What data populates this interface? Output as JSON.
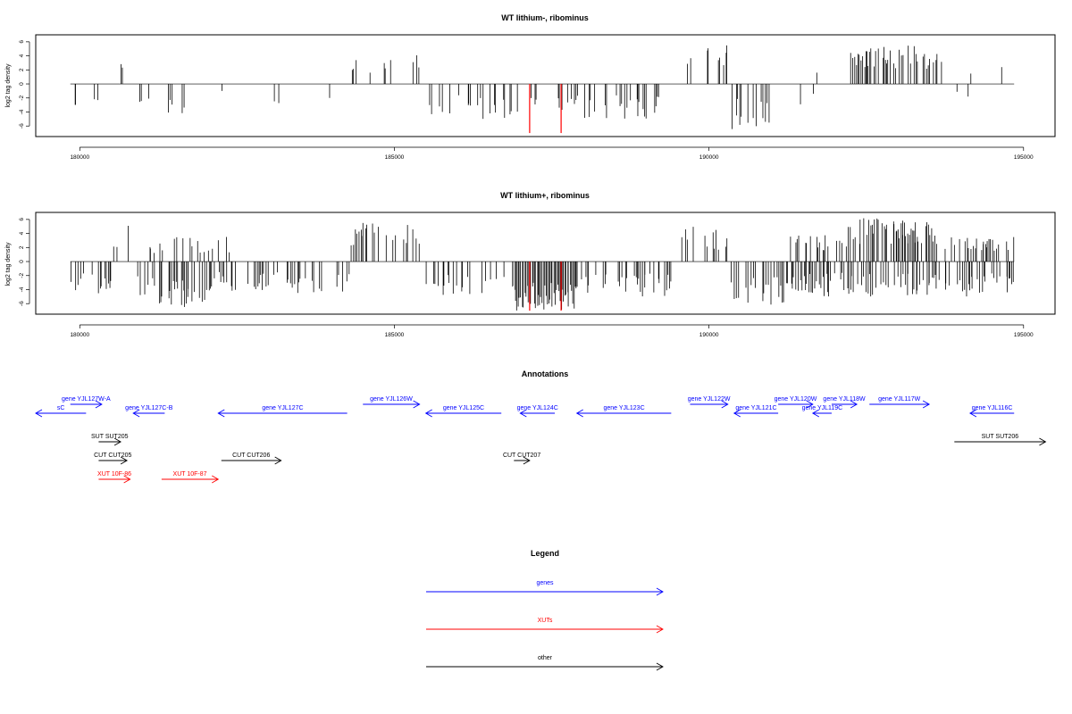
{
  "chart_data": [
    {
      "type": "bar",
      "title": "WT lithium-, ribominus",
      "ylabel": "log2 tag density",
      "xlim": [
        179300,
        195500
      ],
      "ylim": [
        -7.5,
        7
      ],
      "yticks": [
        -6,
        -4,
        -2,
        0,
        2,
        4,
        6
      ],
      "xticks": [
        "180000",
        "185000",
        "190000",
        "195000"
      ],
      "xtick_values": [
        180000,
        185000,
        190000,
        195000
      ],
      "plot_range": [
        179850,
        194850
      ],
      "seed": 11,
      "highlight_color": "#ff0000",
      "bar_color": "#000000",
      "highlights": [
        {
          "x": 187150,
          "y": -7
        },
        {
          "x": 187650,
          "y": -7
        }
      ],
      "regions": [
        {
          "from": 179850,
          "to": 180300,
          "sign": -1,
          "lo": 1.5,
          "hi": 3.5,
          "density": 0.05
        },
        {
          "from": 180600,
          "to": 180850,
          "sign": 1,
          "lo": 1.5,
          "hi": 4.8,
          "density": 0.04
        },
        {
          "from": 180850,
          "to": 181100,
          "sign": -1,
          "lo": 1,
          "hi": 3,
          "density": 0.03
        },
        {
          "from": 181300,
          "to": 181800,
          "sign": -1,
          "lo": 2,
          "hi": 5.2,
          "density": 0.09
        },
        {
          "from": 181900,
          "to": 182300,
          "sign": -1,
          "lo": 1,
          "hi": 3.5,
          "density": 0.04
        },
        {
          "from": 182500,
          "to": 183300,
          "sign": -1,
          "lo": 1,
          "hi": 3,
          "density": 0.04
        },
        {
          "from": 183700,
          "to": 184000,
          "sign": -1,
          "lo": 1,
          "hi": 2,
          "density": 0.02
        },
        {
          "from": 184300,
          "to": 185500,
          "sign": 1,
          "lo": 1.5,
          "hi": 4.2,
          "density": 0.07
        },
        {
          "from": 185500,
          "to": 186100,
          "sign": -1,
          "lo": 1.5,
          "hi": 4.5,
          "density": 0.13
        },
        {
          "from": 186100,
          "to": 186950,
          "sign": -1,
          "lo": 2,
          "hi": 5,
          "density": 0.17
        },
        {
          "from": 187000,
          "to": 187900,
          "sign": -1,
          "lo": 1.5,
          "hi": 4,
          "density": 0.12
        },
        {
          "from": 187900,
          "to": 189200,
          "sign": -1,
          "lo": 1.5,
          "hi": 5,
          "density": 0.19
        },
        {
          "from": 189500,
          "to": 190300,
          "sign": 1,
          "lo": 1.5,
          "hi": 5.5,
          "density": 0.12
        },
        {
          "from": 190300,
          "to": 191000,
          "sign": -1,
          "lo": 2,
          "hi": 6.5,
          "density": 0.17
        },
        {
          "from": 191100,
          "to": 191700,
          "sign": -1,
          "lo": 1,
          "hi": 3.5,
          "density": 0.06
        },
        {
          "from": 191700,
          "to": 192200,
          "sign": 1,
          "lo": 1.5,
          "hi": 3.5,
          "density": 0.06
        },
        {
          "from": 192200,
          "to": 193700,
          "sign": 1,
          "lo": 2,
          "hi": 5.5,
          "density": 0.25
        },
        {
          "from": 193800,
          "to": 194100,
          "sign": -1,
          "lo": 1,
          "hi": 2.5,
          "density": 0.03
        },
        {
          "from": 194100,
          "to": 194800,
          "sign": 1,
          "lo": 1,
          "hi": 3,
          "density": 0.04
        },
        {
          "from": 194100,
          "to": 194700,
          "sign": -1,
          "lo": 1,
          "hi": 3.5,
          "density": 0.03
        }
      ]
    },
    {
      "type": "bar",
      "title": "WT lithium+, ribominus",
      "ylabel": "log2 tag density",
      "xlim": [
        179300,
        195500
      ],
      "ylim": [
        -7.5,
        7
      ],
      "yticks": [
        -6,
        -4,
        -2,
        0,
        2,
        4,
        6
      ],
      "xticks": [
        "180000",
        "185000",
        "190000",
        "195000"
      ],
      "xtick_values": [
        180000,
        185000,
        190000,
        195000
      ],
      "plot_range": [
        179850,
        194850
      ],
      "seed": 23,
      "highlight_color": "#ff0000",
      "bar_color": "#000000",
      "highlights": [
        {
          "x": 187150,
          "y": -7
        },
        {
          "x": 187650,
          "y": -7
        }
      ],
      "regions": [
        {
          "from": 179850,
          "to": 180500,
          "sign": -1,
          "lo": 1.5,
          "hi": 5,
          "density": 0.12
        },
        {
          "from": 180500,
          "to": 180850,
          "sign": 1,
          "lo": 2,
          "hi": 5.2,
          "density": 0.12
        },
        {
          "from": 180850,
          "to": 181200,
          "sign": -1,
          "lo": 1.5,
          "hi": 5,
          "density": 0.12
        },
        {
          "from": 181200,
          "to": 182000,
          "sign": -1,
          "lo": 2.5,
          "hi": 6.5,
          "density": 0.25
        },
        {
          "from": 181100,
          "to": 182500,
          "sign": 1,
          "lo": 1,
          "hi": 3.5,
          "density": 0.07
        },
        {
          "from": 182000,
          "to": 184300,
          "sign": -1,
          "lo": 1.5,
          "hi": 4.5,
          "density": 0.14
        },
        {
          "from": 184300,
          "to": 185400,
          "sign": 1,
          "lo": 2,
          "hi": 5.5,
          "density": 0.22
        },
        {
          "from": 185400,
          "to": 186900,
          "sign": -1,
          "lo": 1.5,
          "hi": 5,
          "density": 0.15
        },
        {
          "from": 186900,
          "to": 187900,
          "sign": -1,
          "lo": 3,
          "hi": 7,
          "density": 0.45
        },
        {
          "from": 187900,
          "to": 189400,
          "sign": -1,
          "lo": 1.5,
          "hi": 5,
          "density": 0.23
        },
        {
          "from": 189400,
          "to": 190300,
          "sign": 1,
          "lo": 1.5,
          "hi": 5,
          "density": 0.14
        },
        {
          "from": 190300,
          "to": 191200,
          "sign": -1,
          "lo": 2,
          "hi": 7,
          "density": 0.25
        },
        {
          "from": 191200,
          "to": 192200,
          "sign": 1,
          "lo": 1.5,
          "hi": 4,
          "density": 0.17
        },
        {
          "from": 192200,
          "to": 193600,
          "sign": 1,
          "lo": 2.5,
          "hi": 6.3,
          "density": 0.32
        },
        {
          "from": 191200,
          "to": 193600,
          "sign": -1,
          "lo": 1.5,
          "hi": 5,
          "density": 0.25
        },
        {
          "from": 193600,
          "to": 194850,
          "sign": 1,
          "lo": 1.5,
          "hi": 3.5,
          "density": 0.22
        },
        {
          "from": 193600,
          "to": 194850,
          "sign": -1,
          "lo": 1.5,
          "hi": 5,
          "density": 0.22
        }
      ]
    }
  ],
  "annotations": {
    "title": "Annotations",
    "colors": {
      "gene": "#0000ff",
      "xut": "#ff0000",
      "other": "#000000"
    },
    "features": [
      {
        "label": "sC",
        "type": "gene",
        "start": 179300,
        "end": 180100,
        "strand": "-",
        "row": 1
      },
      {
        "label": "gene YJL127W-A",
        "type": "gene",
        "start": 179850,
        "end": 180350,
        "strand": "+",
        "row": 0
      },
      {
        "label": "gene YJL127C-B",
        "type": "gene",
        "start": 180850,
        "end": 181350,
        "strand": "-",
        "row": 1
      },
      {
        "label": "gene YJL127C",
        "type": "gene",
        "start": 182200,
        "end": 184250,
        "strand": "-",
        "row": 1
      },
      {
        "label": "gene YJL126W",
        "type": "gene",
        "start": 184500,
        "end": 185400,
        "strand": "+",
        "row": 0
      },
      {
        "label": "gene YJL125C",
        "type": "gene",
        "start": 185500,
        "end": 186700,
        "strand": "-",
        "row": 1
      },
      {
        "label": "gene YJL124C",
        "type": "gene",
        "start": 187000,
        "end": 187550,
        "strand": "-",
        "row": 1
      },
      {
        "label": "gene YJL123C",
        "type": "gene",
        "start": 187900,
        "end": 189400,
        "strand": "-",
        "row": 1
      },
      {
        "label": "gene YJL122W",
        "type": "gene",
        "start": 189700,
        "end": 190300,
        "strand": "+",
        "row": 0
      },
      {
        "label": "gene YJL121C",
        "type": "gene",
        "start": 190400,
        "end": 191100,
        "strand": "-",
        "row": 1
      },
      {
        "label": "gene YJL120W",
        "type": "gene",
        "start": 191100,
        "end": 191650,
        "strand": "+",
        "row": 0
      },
      {
        "label": "gene YJL119C",
        "type": "gene",
        "start": 191650,
        "end": 191950,
        "strand": "-",
        "row": 1
      },
      {
        "label": "gene YJL118W",
        "type": "gene",
        "start": 191950,
        "end": 192350,
        "strand": "+",
        "row": 0
      },
      {
        "label": "gene YJL117W",
        "type": "gene",
        "start": 192550,
        "end": 193500,
        "strand": "+",
        "row": 0
      },
      {
        "label": "gene YJL116C",
        "type": "gene",
        "start": 194150,
        "end": 194850,
        "strand": "-",
        "row": 1
      },
      {
        "label": "SUT SUT205",
        "type": "other",
        "start": 180300,
        "end": 180650,
        "strand": "+",
        "row": 2
      },
      {
        "label": "SUT SUT206",
        "type": "other",
        "start": 193900,
        "end": 195350,
        "strand": "+",
        "row": 2
      },
      {
        "label": "CUT CUT205",
        "type": "other",
        "start": 180300,
        "end": 180750,
        "strand": "+",
        "row": 3
      },
      {
        "label": "CUT CUT206",
        "type": "other",
        "start": 182250,
        "end": 183200,
        "strand": "+",
        "row": 3
      },
      {
        "label": "CUT CUT207",
        "type": "other",
        "start": 186900,
        "end": 187150,
        "strand": "+",
        "row": 3
      },
      {
        "label": "XUT 10F-86",
        "type": "xut",
        "start": 180300,
        "end": 180800,
        "strand": "+",
        "row": 4
      },
      {
        "label": "XUT 10F-87",
        "type": "xut",
        "start": 181300,
        "end": 182200,
        "strand": "+",
        "row": 4
      }
    ]
  },
  "legend": {
    "title": "Legend",
    "items": [
      {
        "label": "genes",
        "color": "#0000ff"
      },
      {
        "label": "XUTs",
        "color": "#ff0000"
      },
      {
        "label": "other",
        "color": "#000000"
      }
    ]
  }
}
